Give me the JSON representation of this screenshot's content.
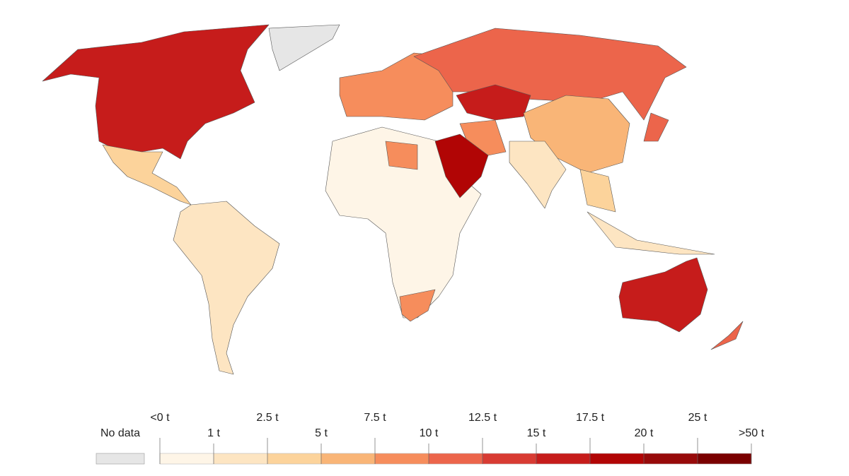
{
  "legend": {
    "no_data_label": "No data",
    "no_data_color": "#e6e6e6",
    "ticks": [
      "<0 t",
      "1 t",
      "2.5 t",
      "5 t",
      "7.5 t",
      "10 t",
      "12.5 t",
      "15 t",
      "17.5 t",
      "20 t",
      "25 t",
      ">50 t"
    ],
    "colors": [
      "#fef5e7",
      "#fde5c2",
      "#fcd39b",
      "#f9b577",
      "#f68d5c",
      "#ec654b",
      "#d83b33",
      "#c61c1b",
      "#b10505",
      "#970a0a",
      "#7a0000"
    ]
  }
}
